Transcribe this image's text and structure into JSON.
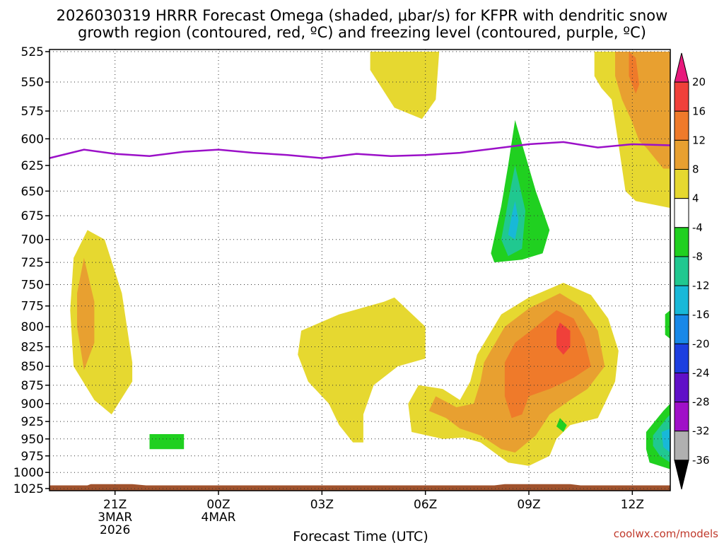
{
  "chart_data": {
    "type": "heatmap",
    "title_line1": "2026030319 HRRR Forecast Omega (shaded, μbar/s) for KFPR with dendritic snow",
    "title_line2": "growth region (contoured, red, ºC) and freezing level (contoured, purple, ºC)",
    "xlabel": "Forecast Time (UTC)",
    "credit": "coolwx.com/models",
    "x_range_hours": [
      -1.9,
      16.1
    ],
    "y_range_mb": [
      525,
      1025
    ],
    "y_ticks": [
      "525",
      "550",
      "575",
      "600",
      "625",
      "650",
      "675",
      "700",
      "725",
      "750",
      "775",
      "800",
      "825",
      "850",
      "875",
      "900",
      "925",
      "950",
      "975",
      "1000",
      "1025"
    ],
    "x_ticks": [
      {
        "label": "21Z",
        "hour": 0,
        "sub1": "3MAR",
        "sub2": "2026"
      },
      {
        "label": "00Z",
        "hour": 3,
        "sub1": "4MAR",
        "sub2": ""
      },
      {
        "label": "03Z",
        "hour": 6,
        "sub1": "",
        "sub2": ""
      },
      {
        "label": "06Z",
        "hour": 9,
        "sub1": "",
        "sub2": ""
      },
      {
        "label": "09Z",
        "hour": 12,
        "sub1": "",
        "sub2": ""
      },
      {
        "label": "12Z",
        "hour": 15,
        "sub1": "",
        "sub2": ""
      }
    ],
    "colorbar": {
      "labels": [
        "20",
        "16",
        "12",
        "8",
        "4",
        "-4",
        "-8",
        "-12",
        "-16",
        "-20",
        "-24",
        "-28",
        "-32",
        "-36"
      ],
      "colors": [
        "#e8197c",
        "#f0403a",
        "#ef7a2a",
        "#e8a030",
        "#e6d830",
        "#ffffff",
        "#20d020",
        "#20c890",
        "#18b8d8",
        "#1888e8",
        "#1c3ee0",
        "#6010c8",
        "#a010c8",
        "#b0b0b0",
        "#000000"
      ]
    },
    "freezing_level": [
      {
        "h": -1.9,
        "p": 618
      },
      {
        "h": -0.9,
        "p": 610
      },
      {
        "h": 0,
        "p": 614
      },
      {
        "h": 1,
        "p": 616
      },
      {
        "h": 2,
        "p": 612
      },
      {
        "h": 3,
        "p": 610
      },
      {
        "h": 4,
        "p": 613
      },
      {
        "h": 5,
        "p": 615
      },
      {
        "h": 6,
        "p": 618
      },
      {
        "h": 7,
        "p": 614
      },
      {
        "h": 8,
        "p": 616
      },
      {
        "h": 9,
        "p": 615
      },
      {
        "h": 10,
        "p": 613
      },
      {
        "h": 11,
        "p": 609
      },
      {
        "h": 12,
        "p": 605
      },
      {
        "h": 13,
        "p": 603
      },
      {
        "h": 14,
        "p": 608
      },
      {
        "h": 15,
        "p": 605
      },
      {
        "h": 16.1,
        "p": 606
      }
    ],
    "omega_regions": [
      {
        "name": "early-col",
        "fill": "#e6d830",
        "pts": [
          [
            -0.8,
            690
          ],
          [
            -0.3,
            700
          ],
          [
            0.2,
            760
          ],
          [
            0.5,
            845
          ],
          [
            0.5,
            870
          ],
          [
            -0.1,
            915
          ],
          [
            -0.6,
            895
          ],
          [
            -1.2,
            850
          ],
          [
            -1.3,
            780
          ],
          [
            -1.2,
            720
          ]
        ]
      },
      {
        "name": "early-col-core",
        "fill": "#e8a030",
        "pts": [
          [
            -0.9,
            720
          ],
          [
            -0.6,
            770
          ],
          [
            -0.6,
            820
          ],
          [
            -0.9,
            855
          ],
          [
            -1.1,
            800
          ],
          [
            -1.1,
            760
          ]
        ]
      },
      {
        "name": "small-green",
        "fill": "#20d020",
        "pts": [
          [
            1,
            943
          ],
          [
            2,
            943
          ],
          [
            2,
            965
          ],
          [
            1,
            965
          ]
        ]
      },
      {
        "name": "mid-blob",
        "fill": "#e6d830",
        "pts": [
          [
            5.4,
            805
          ],
          [
            6.5,
            785
          ],
          [
            7.8,
            770
          ],
          [
            8.1,
            765
          ],
          [
            9,
            800
          ],
          [
            9,
            840
          ],
          [
            8.2,
            850
          ],
          [
            7.5,
            875
          ],
          [
            7.2,
            915
          ],
          [
            7.2,
            955
          ],
          [
            6.9,
            955
          ],
          [
            6.5,
            930
          ],
          [
            6.2,
            900
          ],
          [
            5.6,
            870
          ],
          [
            5.3,
            835
          ]
        ]
      },
      {
        "name": "top-blob",
        "fill": "#e6d830",
        "pts": [
          [
            7.4,
            525
          ],
          [
            9.4,
            525
          ],
          [
            9.3,
            565
          ],
          [
            8.9,
            582
          ],
          [
            8.1,
            572
          ],
          [
            7.4,
            540
          ]
        ]
      },
      {
        "name": "right-top-outer",
        "fill": "#e6d830",
        "pts": [
          [
            13.9,
            525
          ],
          [
            16.1,
            525
          ],
          [
            16.1,
            667
          ],
          [
            15.1,
            660
          ],
          [
            14.8,
            650
          ],
          [
            14.6,
            605
          ],
          [
            14.4,
            565
          ],
          [
            14.1,
            555
          ],
          [
            13.9,
            545
          ]
        ]
      },
      {
        "name": "right-top-orange",
        "fill": "#e8a030",
        "pts": [
          [
            14.5,
            525
          ],
          [
            16.1,
            525
          ],
          [
            16.1,
            628
          ],
          [
            15.9,
            628
          ],
          [
            15.7,
            620
          ],
          [
            15.4,
            608
          ],
          [
            15.2,
            602
          ],
          [
            15,
            585
          ],
          [
            14.7,
            565
          ],
          [
            14.5,
            545
          ]
        ]
      },
      {
        "name": "right-top-deep",
        "fill": "#ef7a2a",
        "pts": [
          [
            14.9,
            525
          ],
          [
            15.1,
            530
          ],
          [
            15.2,
            552
          ],
          [
            15.1,
            560
          ],
          [
            14.9,
            545
          ]
        ]
      },
      {
        "name": "green-spike",
        "fill": "#20d020",
        "pts": [
          [
            11.6,
            583
          ],
          [
            12.2,
            650
          ],
          [
            12.6,
            690
          ],
          [
            12.4,
            715
          ],
          [
            11.8,
            722
          ],
          [
            11,
            725
          ],
          [
            10.9,
            715
          ],
          [
            11.2,
            665
          ],
          [
            11.4,
            625
          ]
        ]
      },
      {
        "name": "green-spike-inner",
        "fill": "#20c890",
        "pts": [
          [
            11.6,
            625
          ],
          [
            11.9,
            670
          ],
          [
            11.8,
            710
          ],
          [
            11.4,
            718
          ],
          [
            11.2,
            700
          ],
          [
            11.4,
            660
          ]
        ]
      },
      {
        "name": "green-spike-core",
        "fill": "#18b8d8",
        "pts": [
          [
            11.6,
            660
          ],
          [
            11.7,
            680
          ],
          [
            11.6,
            700
          ],
          [
            11.4,
            695
          ],
          [
            11.5,
            675
          ]
        ]
      },
      {
        "name": "right-low-outer",
        "fill": "#e6d830",
        "pts": [
          [
            10.5,
            835
          ],
          [
            11.2,
            785
          ],
          [
            12,
            765
          ],
          [
            13,
            748
          ],
          [
            13.8,
            762
          ],
          [
            14.3,
            790
          ],
          [
            14.6,
            830
          ],
          [
            14.5,
            870
          ],
          [
            14.2,
            900
          ],
          [
            14,
            920
          ],
          [
            13.2,
            930
          ],
          [
            12.8,
            950
          ],
          [
            12.6,
            975
          ],
          [
            12,
            990
          ],
          [
            11.4,
            985
          ],
          [
            11,
            970
          ],
          [
            10.6,
            955
          ],
          [
            10.1,
            948
          ],
          [
            9.5,
            950
          ],
          [
            8.6,
            940
          ],
          [
            8.5,
            900
          ],
          [
            8.8,
            875
          ],
          [
            9.5,
            880
          ],
          [
            10,
            895
          ],
          [
            10.3,
            870
          ]
        ]
      },
      {
        "name": "right-low-orange",
        "fill": "#e8a030",
        "pts": [
          [
            10.7,
            845
          ],
          [
            11.3,
            800
          ],
          [
            12,
            778
          ],
          [
            12.9,
            760
          ],
          [
            13.5,
            775
          ],
          [
            14,
            805
          ],
          [
            14.2,
            850
          ],
          [
            13.7,
            880
          ],
          [
            13.2,
            895
          ],
          [
            12.6,
            915
          ],
          [
            12.2,
            945
          ],
          [
            11.6,
            970
          ],
          [
            11.2,
            965
          ],
          [
            10.6,
            945
          ],
          [
            10,
            935
          ],
          [
            9.6,
            920
          ],
          [
            9.1,
            910
          ],
          [
            9.3,
            890
          ],
          [
            9.9,
            905
          ],
          [
            10.4,
            900
          ],
          [
            10.6,
            870
          ]
        ]
      },
      {
        "name": "right-low-deep",
        "fill": "#ef7a2a",
        "pts": [
          [
            11.3,
            845
          ],
          [
            11.6,
            820
          ],
          [
            12.2,
            800
          ],
          [
            12.8,
            780
          ],
          [
            13.3,
            790
          ],
          [
            13.6,
            815
          ],
          [
            13.8,
            850
          ],
          [
            13.3,
            865
          ],
          [
            12.6,
            880
          ],
          [
            12,
            890
          ],
          [
            11.8,
            915
          ],
          [
            11.5,
            920
          ],
          [
            11.3,
            890
          ]
        ]
      },
      {
        "name": "right-low-red",
        "fill": "#f0403a",
        "pts": [
          [
            12.9,
            795
          ],
          [
            13.2,
            805
          ],
          [
            13.2,
            825
          ],
          [
            13,
            835
          ],
          [
            12.8,
            825
          ],
          [
            12.8,
            805
          ]
        ]
      },
      {
        "name": "tiny-green",
        "fill": "#20d020",
        "pts": [
          [
            12.9,
            920
          ],
          [
            13.1,
            930
          ],
          [
            13,
            940
          ],
          [
            12.8,
            932
          ]
        ]
      },
      {
        "name": "corner-green",
        "fill": "#20d020",
        "pts": [
          [
            15.4,
            940
          ],
          [
            15.9,
            910
          ],
          [
            16.1,
            900
          ],
          [
            16.1,
            995
          ],
          [
            15.5,
            985
          ],
          [
            15.4,
            965
          ]
        ]
      },
      {
        "name": "corner-teal",
        "fill": "#20c890",
        "pts": [
          [
            15.6,
            945
          ],
          [
            16,
            920
          ],
          [
            16.1,
            915
          ],
          [
            16.1,
            985
          ],
          [
            15.8,
            975
          ],
          [
            15.6,
            960
          ]
        ]
      },
      {
        "name": "corner-blue",
        "fill": "#18b8d8",
        "pts": [
          [
            15.85,
            940
          ],
          [
            16.1,
            935
          ],
          [
            16.1,
            970
          ],
          [
            15.9,
            962
          ]
        ]
      },
      {
        "name": "edge-green",
        "fill": "#20d020",
        "pts": [
          [
            15.95,
            785
          ],
          [
            16.1,
            780
          ],
          [
            16.1,
            815
          ],
          [
            15.95,
            810
          ]
        ]
      }
    ],
    "terrain": [
      {
        "h": -1.9,
        "p": 1020
      },
      {
        "h": -0.8,
        "p": 1020
      },
      {
        "h": -0.7,
        "p": 1018
      },
      {
        "h": 0.5,
        "p": 1018
      },
      {
        "h": 0.9,
        "p": 1020
      },
      {
        "h": 11,
        "p": 1020
      },
      {
        "h": 11.3,
        "p": 1018
      },
      {
        "h": 13.2,
        "p": 1018
      },
      {
        "h": 13.5,
        "p": 1020
      },
      {
        "h": 16.1,
        "p": 1020
      }
    ]
  }
}
